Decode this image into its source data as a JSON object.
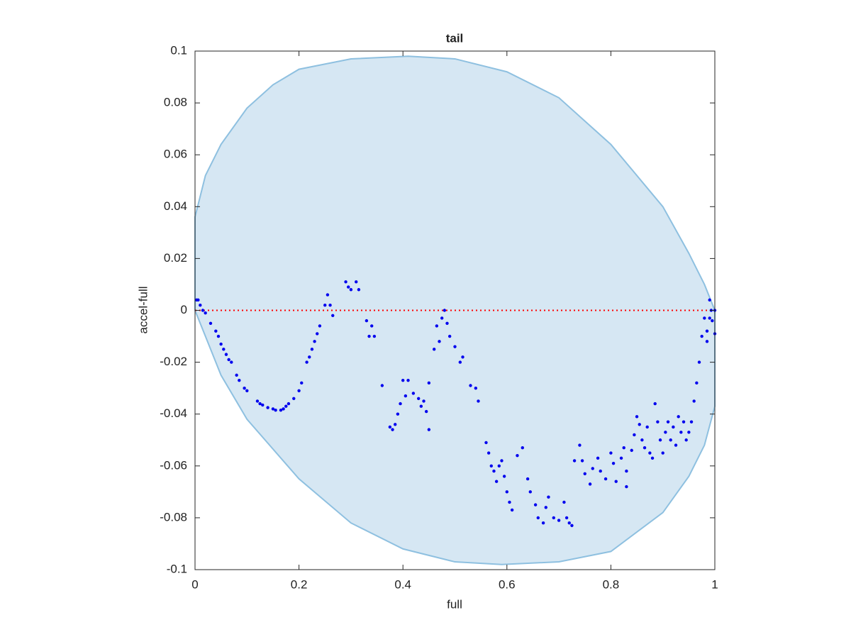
{
  "chart_data": {
    "type": "scatter",
    "title": "tail",
    "xlabel": "full",
    "ylabel": "accel-full",
    "xlim": [
      0,
      1
    ],
    "ylim": [
      -0.1,
      0.1
    ],
    "xticks": [
      0,
      0.2,
      0.4,
      0.6,
      0.8,
      1
    ],
    "yticks": [
      -0.1,
      -0.08,
      -0.06,
      -0.04,
      -0.02,
      0,
      0.02,
      0.04,
      0.06,
      0.08,
      0.1
    ],
    "region": {
      "fill": "#d6e7f3",
      "edge": "#8ec0e0",
      "x": [
        0,
        0.02,
        0.05,
        0.1,
        0.15,
        0.2,
        0.3,
        0.41,
        0.5,
        0.6,
        0.7,
        0.8,
        0.9,
        0.95,
        0.98,
        1,
        1,
        0.98,
        0.95,
        0.9,
        0.8,
        0.7,
        0.59,
        0.5,
        0.4,
        0.3,
        0.2,
        0.1,
        0.05,
        0.02,
        0
      ],
      "y": [
        0.036,
        0.052,
        0.064,
        0.078,
        0.087,
        0.093,
        0.097,
        0.098,
        0.097,
        0.092,
        0.082,
        0.064,
        0.04,
        0.022,
        0.01,
        0,
        -0.037,
        -0.052,
        -0.064,
        -0.078,
        -0.093,
        -0.097,
        -0.098,
        -0.097,
        -0.092,
        -0.082,
        -0.065,
        -0.042,
        -0.025,
        -0.01,
        0
      ]
    },
    "reference_line": {
      "y": 0,
      "color": "#ff0000"
    },
    "series": [
      {
        "color": "#0000ee",
        "x": [
          0.003,
          0.006,
          0.01,
          0.015,
          0.02,
          0.03,
          0.04,
          0.045,
          0.05,
          0.055,
          0.06,
          0.065,
          0.07,
          0.08,
          0.085,
          0.095,
          0.1,
          0.12,
          0.125,
          0.13,
          0.14,
          0.15,
          0.155,
          0.165,
          0.17,
          0.175,
          0.18,
          0.19,
          0.2,
          0.205,
          0.215,
          0.22,
          0.225,
          0.23,
          0.235,
          0.24,
          0.25,
          0.255,
          0.26,
          0.265,
          0.29,
          0.295,
          0.3,
          0.31,
          0.315,
          0.33,
          0.335,
          0.34,
          0.345,
          0.36,
          0.375,
          0.38,
          0.385,
          0.39,
          0.395,
          0.4,
          0.405,
          0.41,
          0.42,
          0.43,
          0.435,
          0.44,
          0.445,
          0.45,
          0.45,
          0.46,
          0.465,
          0.47,
          0.475,
          0.48,
          0.485,
          0.49,
          0.5,
          0.51,
          0.515,
          0.53,
          0.54,
          0.545,
          0.56,
          0.565,
          0.57,
          0.575,
          0.58,
          0.585,
          0.59,
          0.595,
          0.6,
          0.605,
          0.61,
          0.62,
          0.63,
          0.64,
          0.645,
          0.655,
          0.66,
          0.67,
          0.675,
          0.68,
          0.69,
          0.7,
          0.71,
          0.715,
          0.72,
          0.725,
          0.73,
          0.74,
          0.745,
          0.75,
          0.76,
          0.765,
          0.775,
          0.78,
          0.79,
          0.8,
          0.805,
          0.81,
          0.82,
          0.825,
          0.83,
          0.83,
          0.84,
          0.845,
          0.85,
          0.855,
          0.86,
          0.865,
          0.87,
          0.875,
          0.88,
          0.885,
          0.89,
          0.895,
          0.9,
          0.905,
          0.91,
          0.915,
          0.92,
          0.925,
          0.93,
          0.935,
          0.94,
          0.945,
          0.95,
          0.955,
          0.96,
          0.965,
          0.97,
          0.975,
          0.98,
          0.985,
          0.99,
          0.993,
          0.995,
          1,
          1,
          0.985,
          0.99
        ],
        "values": [
          0.004,
          0.004,
          0.002,
          0,
          -0.001,
          -0.005,
          -0.008,
          -0.01,
          -0.013,
          -0.015,
          -0.017,
          -0.019,
          -0.02,
          -0.025,
          -0.027,
          -0.03,
          -0.031,
          -0.035,
          -0.036,
          -0.0365,
          -0.0375,
          -0.038,
          -0.0385,
          -0.0385,
          -0.038,
          -0.037,
          -0.036,
          -0.034,
          -0.031,
          -0.028,
          -0.02,
          -0.018,
          -0.015,
          -0.012,
          -0.009,
          -0.006,
          0.002,
          0.006,
          0.002,
          -0.002,
          0.011,
          0.009,
          0.008,
          0.011,
          0.008,
          -0.004,
          -0.01,
          -0.006,
          -0.01,
          -0.029,
          -0.045,
          -0.046,
          -0.044,
          -0.04,
          -0.036,
          -0.027,
          -0.033,
          -0.027,
          -0.032,
          -0.034,
          -0.037,
          -0.035,
          -0.039,
          -0.046,
          -0.028,
          -0.015,
          -0.006,
          -0.012,
          -0.003,
          0,
          -0.005,
          -0.01,
          -0.014,
          -0.02,
          -0.018,
          -0.029,
          -0.03,
          -0.035,
          -0.051,
          -0.055,
          -0.06,
          -0.062,
          -0.066,
          -0.06,
          -0.058,
          -0.064,
          -0.07,
          -0.074,
          -0.077,
          -0.056,
          -0.053,
          -0.065,
          -0.07,
          -0.075,
          -0.08,
          -0.082,
          -0.076,
          -0.072,
          -0.08,
          -0.081,
          -0.074,
          -0.08,
          -0.082,
          -0.083,
          -0.058,
          -0.052,
          -0.058,
          -0.063,
          -0.067,
          -0.061,
          -0.057,
          -0.062,
          -0.065,
          -0.055,
          -0.059,
          -0.066,
          -0.057,
          -0.053,
          -0.062,
          -0.068,
          -0.054,
          -0.048,
          -0.041,
          -0.044,
          -0.05,
          -0.053,
          -0.045,
          -0.055,
          -0.057,
          -0.036,
          -0.043,
          -0.05,
          -0.055,
          -0.047,
          -0.043,
          -0.05,
          -0.045,
          -0.052,
          -0.041,
          -0.047,
          -0.043,
          -0.05,
          -0.047,
          -0.043,
          -0.035,
          -0.028,
          -0.02,
          -0.01,
          -0.003,
          -0.008,
          0.004,
          0,
          -0.004,
          0,
          -0.009,
          -0.012,
          -0.003
        ]
      }
    ]
  }
}
